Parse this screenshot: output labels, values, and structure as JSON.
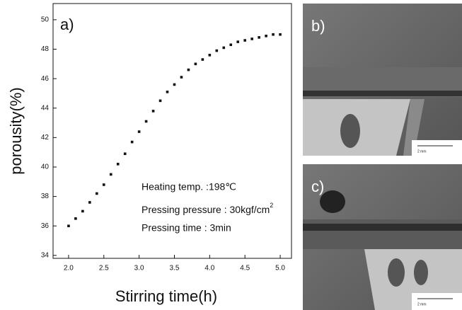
{
  "chart_data": {
    "type": "scatter",
    "panel_label": "a)",
    "x_label": "Stirring time(h)",
    "y_label": "porousity(%)",
    "x": [
      2.0,
      2.1,
      2.2,
      2.3,
      2.4,
      2.5,
      2.6,
      2.7,
      2.8,
      2.9,
      3.0,
      3.1,
      3.2,
      3.3,
      3.4,
      3.5,
      3.6,
      3.7,
      3.8,
      3.9,
      4.0,
      4.1,
      4.2,
      4.3,
      4.4,
      4.5,
      4.6,
      4.7,
      4.8,
      4.9,
      5.0
    ],
    "values": [
      36.0,
      36.5,
      37.0,
      37.6,
      38.2,
      38.8,
      39.5,
      40.2,
      40.9,
      41.7,
      42.4,
      43.1,
      43.8,
      44.5,
      45.1,
      45.6,
      46.1,
      46.6,
      47.0,
      47.3,
      47.6,
      47.9,
      48.1,
      48.3,
      48.5,
      48.6,
      48.7,
      48.8,
      48.9,
      49.0,
      49.0
    ],
    "color": "#111111",
    "xlim": [
      1.78,
      5.16
    ],
    "ylim": [
      33.8,
      51.1
    ],
    "xticks": [
      {
        "value": 2,
        "label": "2.0"
      },
      {
        "value": 2.5,
        "label": "2.5"
      },
      {
        "value": 3,
        "label": "3.0"
      },
      {
        "value": 3.5,
        "label": "3.5"
      },
      {
        "value": 4,
        "label": "4.0"
      },
      {
        "value": 4.5,
        "label": "4.5"
      },
      {
        "value": 5,
        "label": "5.0"
      }
    ],
    "yticks": [
      34,
      36,
      38,
      40,
      42,
      44,
      46,
      48,
      50
    ],
    "annotations": [
      "Heating temp. :198℃",
      "Pressing pressure : 30kgf/cm",
      "Pressing time : 3min"
    ],
    "annotation_superscript": "2"
  },
  "images": [
    {
      "label": "b)",
      "scale_bar": "2 mm"
    },
    {
      "label": "c)",
      "scale_bar": "2 mm"
    }
  ]
}
